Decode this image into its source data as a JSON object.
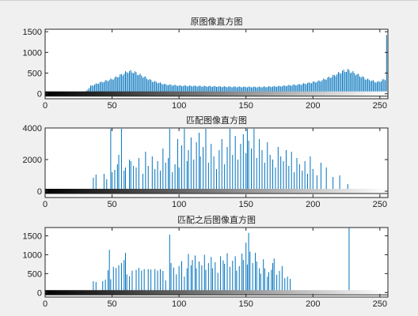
{
  "figure": {
    "background": "#f0f0f0",
    "bar_color": "#0072bd"
  },
  "chart_data": [
    {
      "type": "bar",
      "title": "原图像直方图",
      "xlim": [
        0,
        256
      ],
      "ylim": [
        -120,
        1560
      ],
      "xticks": [
        0,
        50,
        100,
        150,
        200,
        250
      ],
      "yticks": [
        0,
        500,
        1000,
        1500
      ],
      "x_start": 30,
      "x_end": 255,
      "envelope": [
        [
          30,
          40
        ],
        [
          34,
          200
        ],
        [
          40,
          280
        ],
        [
          50,
          380
        ],
        [
          58,
          510
        ],
        [
          62,
          580
        ],
        [
          66,
          570
        ],
        [
          72,
          470
        ],
        [
          80,
          330
        ],
        [
          90,
          240
        ],
        [
          100,
          210
        ],
        [
          120,
          195
        ],
        [
          140,
          180
        ],
        [
          160,
          175
        ],
        [
          175,
          195
        ],
        [
          190,
          240
        ],
        [
          205,
          330
        ],
        [
          215,
          460
        ],
        [
          222,
          580
        ],
        [
          226,
          610
        ],
        [
          232,
          520
        ],
        [
          240,
          380
        ],
        [
          248,
          300
        ],
        [
          254,
          380
        ],
        [
          255,
          1530
        ]
      ],
      "spikes": []
    },
    {
      "type": "bar",
      "title": "匹配图像直方图",
      "xlim": [
        0,
        256
      ],
      "ylim": [
        -400,
        4000
      ],
      "xticks": [
        0,
        50,
        100,
        150,
        200,
        250
      ],
      "yticks": [
        0,
        2000,
        4000
      ],
      "spikes": [
        [
          36,
          850
        ],
        [
          38,
          1050
        ],
        [
          44,
          1100
        ],
        [
          46,
          750
        ],
        [
          49,
          3950
        ],
        [
          50,
          1200
        ],
        [
          52,
          1350
        ],
        [
          54,
          1700
        ],
        [
          55,
          2300
        ],
        [
          57,
          3950
        ],
        [
          59,
          1300
        ],
        [
          60,
          1500
        ],
        [
          63,
          2000
        ],
        [
          64,
          1900
        ],
        [
          66,
          1600
        ],
        [
          68,
          1500
        ],
        [
          70,
          2100
        ],
        [
          73,
          1100
        ],
        [
          75,
          2500
        ],
        [
          77,
          1600
        ],
        [
          80,
          2200
        ],
        [
          82,
          1400
        ],
        [
          84,
          1900
        ],
        [
          86,
          1300
        ],
        [
          88,
          2700
        ],
        [
          90,
          1800
        ],
        [
          92,
          2100
        ],
        [
          93,
          3950
        ],
        [
          95,
          1200
        ],
        [
          97,
          1700
        ],
        [
          99,
          3300
        ],
        [
          100,
          1500
        ],
        [
          102,
          2900
        ],
        [
          104,
          3950
        ],
        [
          106,
          1900
        ],
        [
          107,
          2600
        ],
        [
          109,
          3400
        ],
        [
          111,
          2000
        ],
        [
          113,
          3100
        ],
        [
          115,
          3700
        ],
        [
          116,
          2200
        ],
        [
          118,
          2800
        ],
        [
          120,
          3950
        ],
        [
          122,
          1800
        ],
        [
          124,
          3000
        ],
        [
          126,
          2200
        ],
        [
          128,
          1400
        ],
        [
          130,
          2600
        ],
        [
          132,
          3300
        ],
        [
          134,
          1700
        ],
        [
          136,
          2800
        ],
        [
          138,
          3950
        ],
        [
          140,
          2300
        ],
        [
          142,
          3500
        ],
        [
          144,
          2000
        ],
        [
          146,
          3000
        ],
        [
          148,
          3600
        ],
        [
          150,
          2400
        ],
        [
          151,
          3950
        ],
        [
          152,
          3200
        ],
        [
          154,
          2700
        ],
        [
          156,
          3950
        ],
        [
          158,
          2100
        ],
        [
          160,
          3300
        ],
        [
          162,
          2600
        ],
        [
          164,
          1800
        ],
        [
          166,
          3100
        ],
        [
          168,
          2300
        ],
        [
          170,
          2000
        ],
        [
          172,
          1500
        ],
        [
          174,
          2800
        ],
        [
          176,
          2200
        ],
        [
          178,
          1900
        ],
        [
          180,
          2600
        ],
        [
          182,
          1600
        ],
        [
          184,
          2500
        ],
        [
          186,
          1200
        ],
        [
          188,
          2100
        ],
        [
          190,
          1700
        ],
        [
          192,
          1300
        ],
        [
          194,
          1900
        ],
        [
          196,
          1100
        ],
        [
          198,
          2200
        ],
        [
          200,
          1400
        ],
        [
          203,
          1000
        ],
        [
          206,
          1800
        ],
        [
          210,
          1500
        ],
        [
          215,
          900
        ],
        [
          220,
          1000
        ],
        [
          226,
          450
        ]
      ]
    },
    {
      "type": "bar",
      "title": "匹配之后图像直方图",
      "xlim": [
        0,
        256
      ],
      "ylim": [
        -120,
        1720
      ],
      "xticks": [
        0,
        50,
        100,
        150,
        200,
        250
      ],
      "yticks": [
        0,
        500,
        1000,
        1500
      ],
      "spikes": [
        [
          36,
          300
        ],
        [
          38,
          280
        ],
        [
          43,
          300
        ],
        [
          45,
          340
        ],
        [
          47,
          590
        ],
        [
          48,
          1130
        ],
        [
          49,
          350
        ],
        [
          51,
          680
        ],
        [
          53,
          650
        ],
        [
          55,
          720
        ],
        [
          57,
          780
        ],
        [
          59,
          860
        ],
        [
          60,
          1050
        ],
        [
          61,
          480
        ],
        [
          63,
          430
        ],
        [
          65,
          580
        ],
        [
          68,
          600
        ],
        [
          70,
          650
        ],
        [
          72,
          580
        ],
        [
          74,
          620
        ],
        [
          77,
          620
        ],
        [
          79,
          610
        ],
        [
          82,
          620
        ],
        [
          84,
          580
        ],
        [
          86,
          620
        ],
        [
          88,
          570
        ],
        [
          90,
          320
        ],
        [
          93,
          1530
        ],
        [
          94,
          780
        ],
        [
          96,
          660
        ],
        [
          98,
          480
        ],
        [
          100,
          700
        ],
        [
          102,
          830
        ],
        [
          104,
          420
        ],
        [
          106,
          640
        ],
        [
          107,
          1020
        ],
        [
          109,
          720
        ],
        [
          110,
          860
        ],
        [
          112,
          980
        ],
        [
          113,
          640
        ],
        [
          115,
          820
        ],
        [
          117,
          720
        ],
        [
          119,
          1000
        ],
        [
          120,
          600
        ],
        [
          122,
          780
        ],
        [
          124,
          940
        ],
        [
          125,
          640
        ],
        [
          127,
          800
        ],
        [
          129,
          520
        ],
        [
          131,
          960
        ],
        [
          133,
          850
        ],
        [
          134,
          760
        ],
        [
          136,
          1040
        ],
        [
          138,
          680
        ],
        [
          140,
          840
        ],
        [
          142,
          960
        ],
        [
          143,
          580
        ],
        [
          145,
          700
        ],
        [
          147,
          1030
        ],
        [
          148,
          860
        ],
        [
          150,
          1320
        ],
        [
          151,
          740
        ],
        [
          152,
          1580
        ],
        [
          153,
          1080
        ],
        [
          155,
          780
        ],
        [
          157,
          1050
        ],
        [
          158,
          820
        ],
        [
          160,
          640
        ],
        [
          161,
          500
        ],
        [
          163,
          880
        ],
        [
          164,
          640
        ],
        [
          166,
          420
        ],
        [
          167,
          540
        ],
        [
          169,
          600
        ],
        [
          170,
          780
        ],
        [
          171,
          900
        ],
        [
          173,
          470
        ],
        [
          175,
          570
        ],
        [
          177,
          700
        ],
        [
          179,
          380
        ],
        [
          181,
          420
        ],
        [
          183,
          360
        ],
        [
          227,
          1720
        ]
      ]
    }
  ]
}
